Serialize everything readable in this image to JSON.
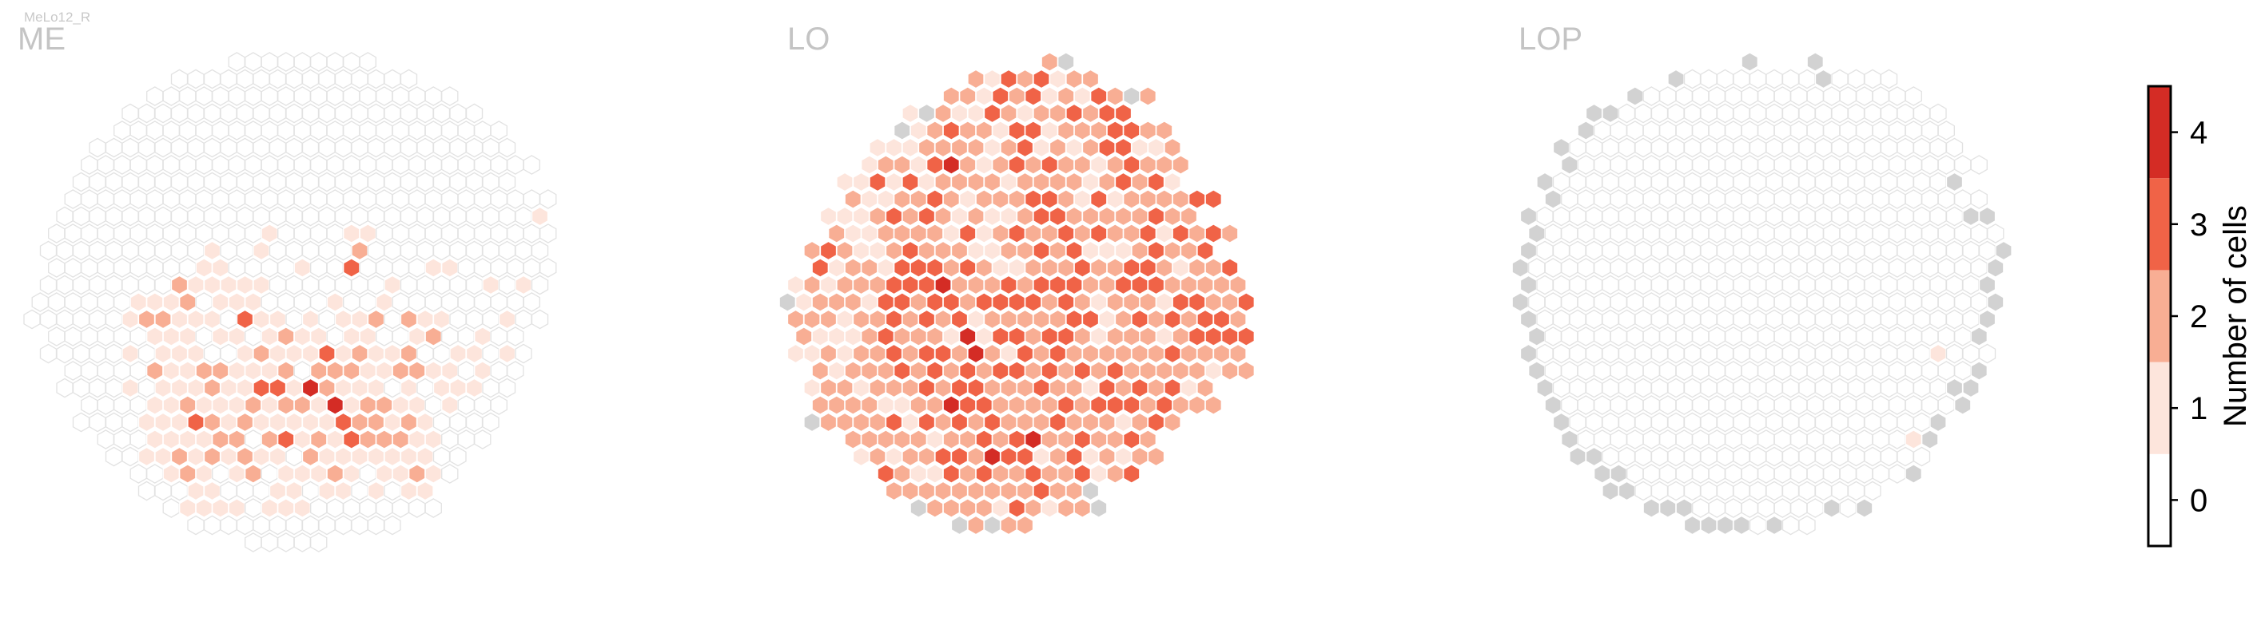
{
  "figure": {
    "neuron_label": "MeLo12_R"
  },
  "chart_data": {
    "type": "heatmap",
    "description_kind": "hexagonal column maps",
    "panels": [
      {
        "title": "ME",
        "rows": 32,
        "cols": 32,
        "codes": [
          "XXXXXXXXXXXXXXXXXXXXXXXXXXXXXXXX",
          "XXXXXXXXXXXX000000000XXXXXXXXXXX",
          "XXXXXXXXX000000000000000XXXXXXXX",
          "XXXXXXX0000000000000000000XXXXXX",
          "XXXXXX0000000000000000000000XXXX",
          "XXXXX000000000000000000000000XXX",
          "XXXX00000000000000000000000000XX",
          "XXX0000000000000000000000000000X",
          "XXX000000000000000000000000000XX",
          "XX000000000000000000000000000000",
          "XX000000000000000000000000000001",
          "X0000000000000100001100000000000",
          "X0000000000100100000200000000000",
          "X0000000001100001003000011000000",
          "X0000000021111100000001000001010",
          "0000001112011100001001000000000X",
          "00000012211103110101120211000100",
          "X00000011101101211011001200100XX",
          "X000001011100121113121120011010X",
          "XX0000021122111202221122110100XX",
          "XX0000101112113314211101011100XX",
          "XXX00001121112122141221101000XXX",
          "XXX00001113212111113221210000XXX",
          "XXXX000111122023121322211000XXXX",
          "XXXXX0011212121102111111100XXXXX",
          "XXXXXX00121012011121011210XXXXXX",
          "XXXXXXX000110001101101011XXXXXXX",
          "XXXXXXXX01111011100000000XXXXXXX",
          "XXXXXXXXXX0000000000000XXXXXXXXX",
          "XXXXXXXXXXXXX00000XXXXXXXXXXXXXX",
          "XXXXXXXXXXXXXXXXXXXXXXXXXXXXXXXX",
          "XXXXXXXXXXXXXXXXXXXXXXXXXXXXXXXX"
        ]
      },
      {
        "title": "LO",
        "rows": 32,
        "cols": 32,
        "codes": [
          "XXXXXXXXXXXXXXXXXXXXXXXXXXXXXXXX",
          "XXXXXXXXXXXXXXXX2NXXXXXXXXXXXXXX",
          "XXXXXXXXXXXX21323122XXXXXXXXXXXX",
          "XXXXXXXXXX22132312132N2XXXXXXXXX",
          "XXXXXXXX1N211321223233XXXXXXXXXX",
          "XXXXXXXN1232213312223322XXXXXXXX",
          "XXXXXX1112222123121233112XXXXXXX",
          "XXXXX12213421232322123222XXXXXXX",
          "XXXX113131222212222123231XXXXXXX",
          "XXXX21122321222332131222233XXXXX",
          "XXX11123232121123322222322XXXXXX",
          "XXX2112222131232232322313232XXXX",
          "XX2321123222112232311123223XXXXX",
          "XX31221333232112223223321223XXXX",
          "X1212223334222323332233322222XXX",
          "N1222133233233332321222133223XXX",
          "X2221223232312222233123232332XXX",
          "X2111232221413323321222123333XXX",
          "X1121223233242132322222232222XXX",
          "XX212223232323323232322222122XXX",
          "XX1221222323322232213232312XXXXX",
          "XX2222112243322223233323222XXXXX",
          "XXN2222313232322232221232XXXXXXX",
          "XXXX2222212232342232232XXXXXXXXX",
          "XXXXX1212233243312312122XXXXXXXX",
          "XXXXXX3211323223223123XXXXXXXXXX",
          "XXXXXXX222222222322NXXXXXXXXXXXX",
          "XXXXXXXXN2222132122NXXXXXXXXXXXX",
          "XXXXXXXXXXXN2N22XXXXXXXXXXXXXXXX",
          "XXXXXXXXXXXXXXXXXXXXXXXXXXXXXXXX",
          "XXXXXXXXXXXXXXXXXXXXXXXXXXXXXXXX",
          "XXXXXXXXXXXXXXXXXXXXXXXXXXXXXXXX"
        ]
      },
      {
        "title": "LOP",
        "rows": 32,
        "cols": 32,
        "codes": [
          "XXXXXXXXXXXXXXXXXXXXXXXXXXXXXXXX",
          "XXXXXXXXXXXXXXNXXXNXXXXXXXXXXXXX",
          "XXXXXXXXXXN00000000N0000XXXXXXXX",
          "XXXXXXXN00000000000000000XXXXXXX",
          "XXXXXNN00000000000000000000XXXXX",
          "XXXXN0000000000000000000000XXXXX",
          "XXXN000000000000000000000000XXXX",
          "XXXN0000000000000000000000000XXX",
          "XXN000000000000000000000000NXXXX",
          "XXN00000000000000000000000000XXX",
          "XN00000000000000000000000000NNXX",
          "XN0000000000000000000000000000XX",
          "XN0000000000000000000000000000NX",
          "N0000000000000000000000000000NXX",
          "XN000000000000000000000000000NXX",
          "N0000000000000000000000000000NXX",
          "XN000000000000000000000000000NXX",
          "XN00000000000000000000000000NXXX",
          "XN0000000000000000000000001000XX",
          "XN00000000000000000000000000NXXX",
          "XXN000000000000000000000000NNXXX",
          "XXN000000000000000000000000NXXXX",
          "XXXN0000000000000000000000NXXXXX",
          "XXXN000000000000000000001NXXXXXX",
          "XXXXNN00000000000000000000XXXXXX",
          "XXXXXNN00000000000000000NXXXXXXX",
          "XXXXXXNN000000000000000XXXXXXXXX",
          "XXXXXXXXNNN00000000N0NXXXXXXXXXX",
          "XXXXXXXXXXXNNNN0N00XXXXXXXXXXXXX",
          "XXXXXXXXXXXXXXXXXXXXXXXXXXXXXXXX",
          "XXXXXXXXXXXXXXXXXXXXXXXXXXXXXXXX",
          "XXXXXXXXXXXXXXXXXXXXXXXXXXXXXXXX"
        ]
      }
    ],
    "code_legend": {
      "X": "no column",
      "N": "column without data (grey)",
      "0": "0 cells",
      "1": "1 cell",
      "2": "2 cells",
      "3": "3 cells",
      "4": "4 cells"
    },
    "colorbar": {
      "label": "Number of cells",
      "ticks": [
        "0",
        "1",
        "2",
        "3",
        "4"
      ],
      "range": [
        -0.5,
        4.5
      ],
      "colors": [
        "#ffffff",
        "#fde5dc",
        "#f8ae94",
        "#f06347",
        "#d42c25"
      ]
    },
    "colors": {
      "no_data_fill": "#d2d2d2",
      "empty_stroke": "#e2e2e2",
      "cell_stroke": "#ffffff",
      "title_color": "#c4c4c4"
    }
  }
}
